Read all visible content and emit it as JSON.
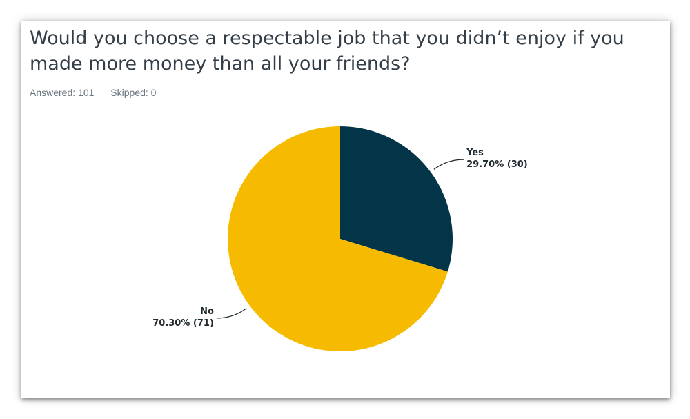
{
  "question": {
    "title": "Would you choose a respectable job that you didn’t enjoy if you made more money than all your friends?"
  },
  "stats": {
    "answered": "Answered: 101",
    "skipped": "Skipped: 0"
  },
  "chart_data": {
    "type": "pie",
    "title": "",
    "slices": [
      {
        "name": "Yes",
        "value": 29.7,
        "count": 30,
        "label": "29.70% (30)",
        "color": "#043448"
      },
      {
        "name": "No",
        "value": 70.3,
        "count": 71,
        "label": "70.30% (71)",
        "color": "#f6bb00"
      }
    ],
    "start": "12 o'clock",
    "direction": "clockwise",
    "legend": "none (slices labeled directly)"
  }
}
